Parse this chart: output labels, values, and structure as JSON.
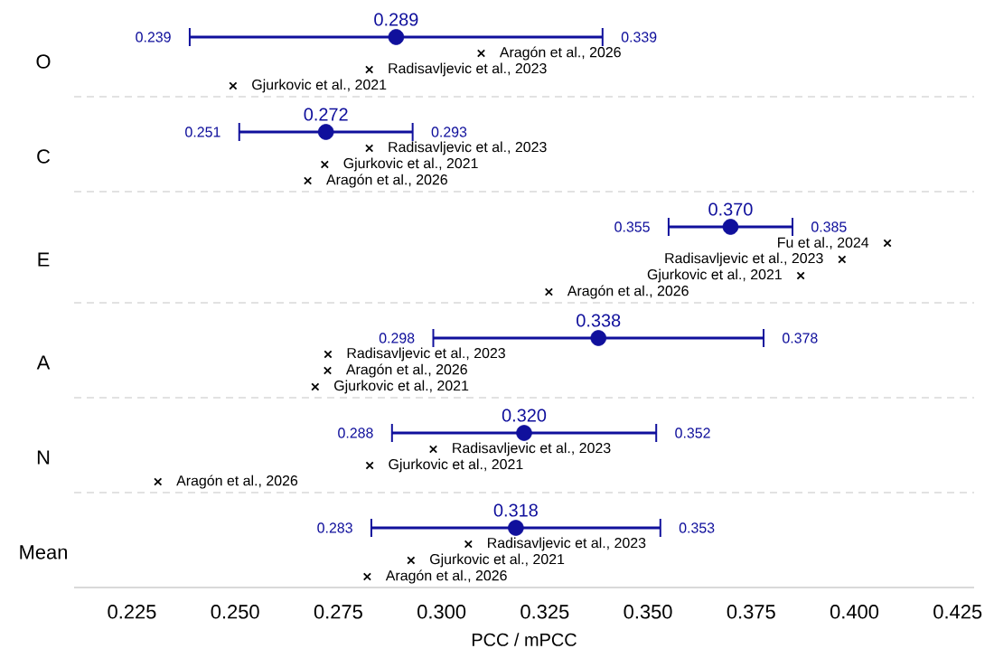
{
  "chart_data": {
    "type": "scatter",
    "orientation": "horizontal",
    "xlabel": "PCC / mPCC",
    "categories": [
      "O",
      "C",
      "E",
      "A",
      "N",
      "Mean"
    ],
    "xlim": [
      0.211,
      0.429
    ],
    "xticks": [
      {
        "value": 0.225,
        "label": "0.225"
      },
      {
        "value": 0.25,
        "label": "0.250"
      },
      {
        "value": 0.275,
        "label": "0.275"
      },
      {
        "value": 0.3,
        "label": "0.300"
      },
      {
        "value": 0.325,
        "label": "0.325"
      },
      {
        "value": 0.35,
        "label": "0.350"
      },
      {
        "value": 0.375,
        "label": "0.375"
      },
      {
        "value": 0.4,
        "label": "0.400"
      },
      {
        "value": 0.425,
        "label": "0.425"
      }
    ],
    "grid": "y",
    "series": [
      {
        "type": "scatter",
        "marker": "circle",
        "color": "#10109c",
        "values": [
          0.289,
          0.272,
          0.37,
          0.338,
          0.32,
          0.318
        ],
        "value_labels": [
          "0.289",
          "0.272",
          "0.370",
          "0.338",
          "0.320",
          "0.318"
        ],
        "errors": [
          [
            0.239,
            0.339
          ],
          [
            0.251,
            0.293
          ],
          [
            0.355,
            0.385
          ],
          [
            0.298,
            0.378
          ],
          [
            0.288,
            0.352
          ],
          [
            0.283,
            0.353
          ]
        ]
      },
      {
        "type": "scatter",
        "marker": "cross",
        "name": "Radisavljevic et al., 2023",
        "color": "#000000",
        "values": [
          0.2825,
          0.2825,
          0.397,
          0.2725,
          0.298,
          0.3065
        ]
      },
      {
        "type": "scatter",
        "marker": "cross",
        "name": "Gjurkovic et al., 2021",
        "color": "#000000",
        "values": [
          0.2495,
          0.2717,
          0.387,
          0.2694,
          0.2826,
          0.2926
        ]
      },
      {
        "type": "scatter",
        "marker": "cross",
        "name": "Aragón et al., 2026",
        "color": "#000000",
        "values": [
          0.3096,
          0.2676,
          0.326,
          0.2724,
          0.2313,
          0.282
        ]
      },
      {
        "type": "scatter",
        "marker": "cross",
        "name": "Fu et al., 2024",
        "color": "#000000",
        "values": [
          null,
          null,
          0.408,
          null,
          null,
          null
        ]
      }
    ],
    "annotations": [
      "0.239",
      "0.339",
      "0.251",
      "0.293",
      "0.355",
      "0.385",
      "0.298",
      "0.378",
      "0.288",
      "0.352",
      "0.283",
      "0.353"
    ]
  }
}
